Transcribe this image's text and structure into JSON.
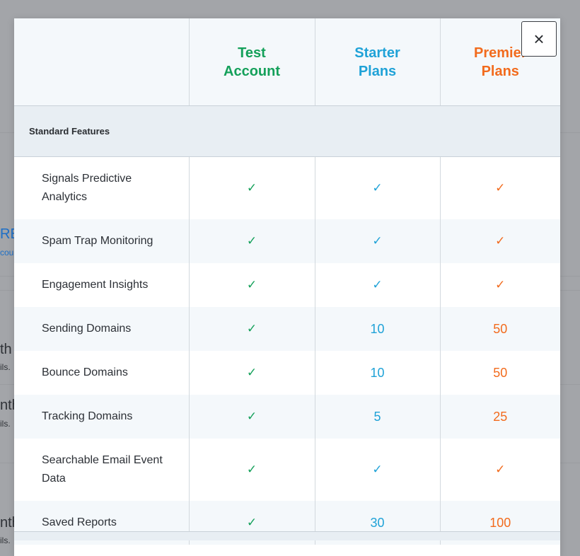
{
  "background": {
    "fragments": [
      {
        "text": "RE",
        "kind": "link"
      },
      {
        "text": "cou",
        "kind": "link2"
      },
      {
        "text": "th",
        "kind": "big"
      },
      {
        "text": "ils.",
        "kind": "small"
      },
      {
        "text": "nth",
        "kind": "big"
      },
      {
        "text": "ils.",
        "kind": "small"
      },
      {
        "text": "nth",
        "kind": "big"
      },
      {
        "text": "ils.",
        "kind": "small"
      }
    ]
  },
  "close_label": "×",
  "columns": {
    "test": "Test Account",
    "starter": "Starter Plans",
    "premier": "Premier Plans"
  },
  "section_title": "Standard Features",
  "rows": [
    {
      "feature": "Signals Predictive Analytics",
      "test": "✓",
      "starter": "✓",
      "premier": "✓"
    },
    {
      "feature": "Spam Trap Monitoring",
      "test": "✓",
      "starter": "✓",
      "premier": "✓"
    },
    {
      "feature": "Engagement Insights",
      "test": "✓",
      "starter": "✓",
      "premier": "✓"
    },
    {
      "feature": "Sending Domains",
      "test": "✓",
      "starter": "10",
      "premier": "50"
    },
    {
      "feature": "Bounce Domains",
      "test": "✓",
      "starter": "10",
      "premier": "50"
    },
    {
      "feature": "Tracking Domains",
      "test": "✓",
      "starter": "5",
      "premier": "25"
    },
    {
      "feature": "Searchable Email Event Data",
      "test": "✓",
      "starter": "✓",
      "premier": "✓"
    },
    {
      "feature": "Saved Reports",
      "test": "✓",
      "starter": "30",
      "premier": "100"
    }
  ],
  "colors": {
    "test": "#14a05a",
    "starter": "#1fa2d7",
    "premier": "#f26b1d"
  }
}
